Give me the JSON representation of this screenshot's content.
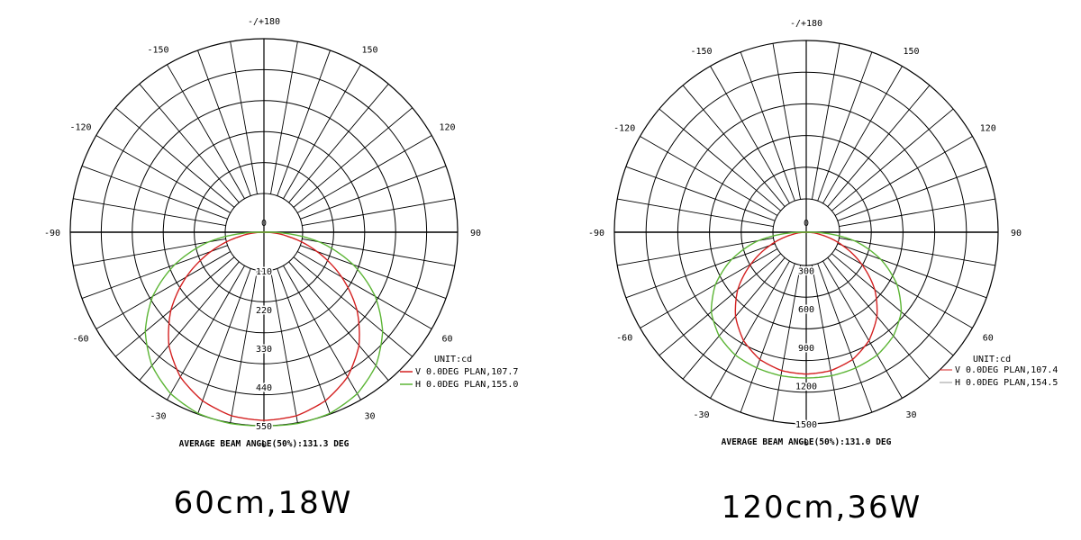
{
  "chart_data": [
    {
      "type": "polar",
      "caption": "60cm,18W",
      "unit_label": "UNIT:cd",
      "beam_angle_label": "AVERAGE BEAM ANGLE(50%):131.3 DEG",
      "angle_labels": [
        "-/+180",
        "150",
        "120",
        "90",
        "60",
        "30",
        "0",
        "-30",
        "-60",
        "-90",
        "-120",
        "-150"
      ],
      "radial_ticks": [
        110,
        220,
        330,
        440,
        550
      ],
      "rmax": 550,
      "series": [
        {
          "legend": "V 0.0DEG PLAN,107.7",
          "color": "#d42020",
          "angles_deg": [
            -90,
            -80,
            -70,
            -60,
            -50,
            -40,
            -30,
            -20,
            -10,
            0,
            10,
            20,
            30,
            40,
            50,
            60,
            70,
            80,
            90
          ],
          "values": [
            0,
            70,
            160,
            255,
            345,
            420,
            475,
            510,
            530,
            535,
            530,
            510,
            475,
            420,
            345,
            255,
            160,
            70,
            0
          ]
        },
        {
          "legend": "H 0.0DEG PLAN,155.0",
          "color": "#5cb535",
          "angles_deg": [
            -90,
            -80,
            -70,
            -60,
            -50,
            -40,
            -30,
            -20,
            -10,
            0,
            10,
            20,
            30,
            40,
            50,
            60,
            70,
            80,
            90
          ],
          "values": [
            20,
            160,
            270,
            365,
            440,
            495,
            530,
            548,
            552,
            550,
            552,
            548,
            530,
            495,
            440,
            365,
            270,
            160,
            20
          ]
        }
      ]
    },
    {
      "type": "polar",
      "caption": "120cm,36W",
      "unit_label": "UNIT:cd",
      "beam_angle_label": "AVERAGE BEAM ANGLE(50%):131.0 DEG",
      "angle_labels": [
        "-/+180",
        "150",
        "120",
        "90",
        "60",
        "30",
        "0",
        "-30",
        "-60",
        "-90",
        "-120",
        "-150"
      ],
      "radial_ticks": [
        300,
        600,
        900,
        1200,
        1500
      ],
      "rmax": 1500,
      "series": [
        {
          "legend": "V 0.0DEG PLAN,107.4",
          "color": "#d42020",
          "angles_deg": [
            -90,
            -80,
            -70,
            -60,
            -50,
            -40,
            -30,
            -20,
            -10,
            0,
            10,
            20,
            30,
            40,
            50,
            60,
            70,
            80,
            90
          ],
          "values": [
            0,
            120,
            300,
            500,
            700,
            860,
            980,
            1060,
            1100,
            1110,
            1100,
            1060,
            980,
            860,
            700,
            500,
            300,
            120,
            0
          ]
        },
        {
          "legend": "H 0.0DEG PLAN,154.5",
          "color": "#5cb535",
          "angles_deg": [
            -90,
            -80,
            -70,
            -60,
            -50,
            -40,
            -30,
            -20,
            -10,
            0,
            10,
            20,
            30,
            40,
            50,
            60,
            70,
            80,
            90
          ],
          "values": [
            40,
            380,
            620,
            820,
            970,
            1060,
            1110,
            1130,
            1140,
            1140,
            1140,
            1130,
            1110,
            1060,
            970,
            820,
            620,
            380,
            40
          ]
        }
      ]
    }
  ]
}
